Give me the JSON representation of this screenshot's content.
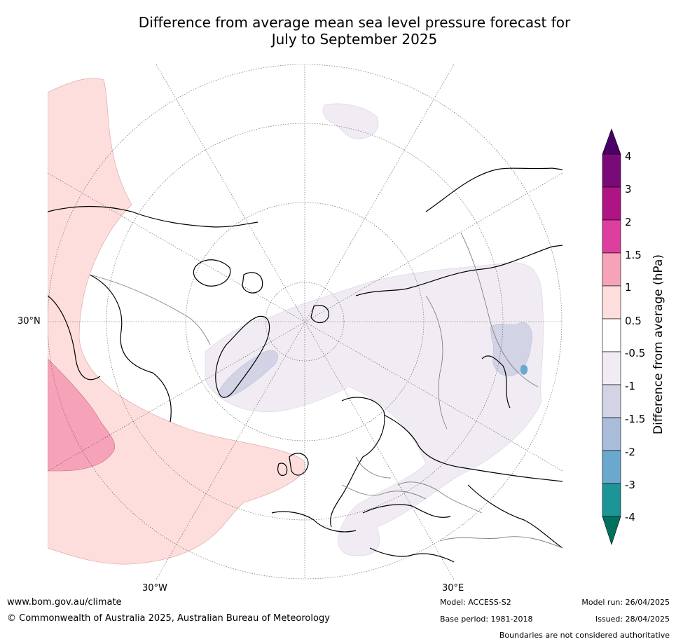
{
  "title": {
    "line1": "Difference from average mean sea level pressure forecast for",
    "line2": "July to September 2025"
  },
  "map": {
    "projection": "north-polar-stereographic",
    "graticule_labels": {
      "lat_30": "30°N",
      "lon_w30": "30°W",
      "lon_e30": "30°E"
    },
    "anomaly_regions": [
      {
        "region": "North Atlantic / eastern North America",
        "category": "0.5 to 1"
      },
      {
        "region": "Mid North Atlantic",
        "category": "1 to 1.5"
      },
      {
        "region": "Greenland",
        "category": "-1.5 to -1"
      },
      {
        "region": "Arctic / Scandinavia / Siberia",
        "category": "-1 to -0.5"
      },
      {
        "region": "Central Siberia",
        "category": "-1.5 to -1"
      },
      {
        "region": "Central Siberia spot",
        "category": "-2 to -1.5"
      }
    ]
  },
  "colorbar": {
    "title": "Difference from average (hPa)",
    "labels": [
      "4",
      "3",
      "2",
      "1.5",
      "1",
      "0.5",
      "-0.5",
      "-1",
      "-1.5",
      "-2",
      "-3",
      "-4"
    ],
    "colors": [
      "#4b0068",
      "#7a0a78",
      "#b01383",
      "#dd3f9e",
      "#f6a2b8",
      "#fddedc",
      "#ffffff",
      "#f1ecf3",
      "#d2d3e5",
      "#a9bcd9",
      "#6aa8ce",
      "#1d9496",
      "#00715c"
    ],
    "extend_top_color": "#4b0068",
    "extend_bottom_color": "#00715c"
  },
  "footer": {
    "website": "www.bom.gov.au/climate",
    "copyright": "© Commonwealth of Australia 2025, Australian Bureau of Meteorology",
    "model": "Model: ACCESS-S2",
    "base_period": "Base period: 1981-2018",
    "model_run": "Model run: 26/04/2025",
    "issued": "Issued: 28/04/2025",
    "boundaries_note": "Boundaries are not considered authoritative"
  }
}
